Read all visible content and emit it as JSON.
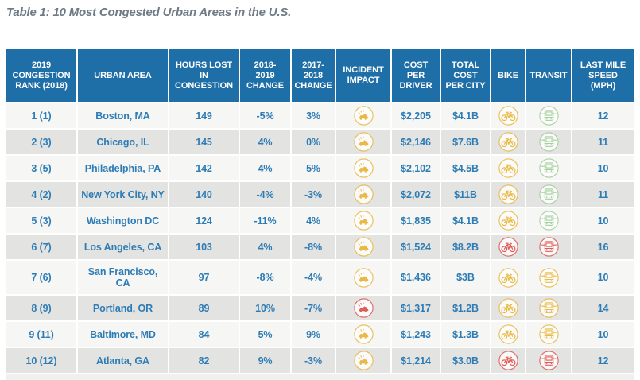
{
  "title": "Table 1: 10 Most Congested Urban Areas in the U.S.",
  "colors": {
    "header_bg": "#1e6ea8",
    "row_light": "#f6f6f4",
    "row_dark": "#e3e3e1",
    "cell_text_blue": "#2e7cb5",
    "title_gray": "#6e7a85",
    "icon_yellow": "#e9b944",
    "icon_green": "#a3cf9b",
    "icon_red": "#e05c57"
  },
  "icon_legend": {
    "incident_impact": "car-crash-icon",
    "bike": "bicycle-icon",
    "transit": "transit-vehicle-icon"
  },
  "chart_data": {
    "type": "table",
    "title": "Table 1: 10 Most Congested Urban Areas in the U.S.",
    "columns": [
      {
        "key": "rank",
        "label": "2019\nCONGESTION\nRANK (2018)",
        "type": "text"
      },
      {
        "key": "urban_area",
        "label": "URBAN AREA",
        "type": "text"
      },
      {
        "key": "hours_lost",
        "label": "HOURS LOST\nIN\nCONGESTION",
        "type": "text"
      },
      {
        "key": "change_2018_2019",
        "label": "2018-\n2019\nCHANGE",
        "type": "text"
      },
      {
        "key": "change_2017_2018",
        "label": "2017-\n2018\nCHANGE",
        "type": "text"
      },
      {
        "key": "incident_impact",
        "label": "INCIDENT\nIMPACT",
        "type": "icon",
        "icon": "incident"
      },
      {
        "key": "cost_per_driver",
        "label": "COST\nPER\nDRIVER",
        "type": "text"
      },
      {
        "key": "total_cost_per_city",
        "label": "TOTAL\nCOST\nPER CITY",
        "type": "text"
      },
      {
        "key": "bike",
        "label": "BIKE",
        "type": "icon",
        "icon": "bike"
      },
      {
        "key": "transit",
        "label": "TRANSIT",
        "type": "icon",
        "icon": "transit"
      },
      {
        "key": "last_mile_speed",
        "label": "LAST MILE\nSPEED\n(MPH)",
        "type": "text"
      }
    ],
    "rows": [
      {
        "rank": "1 (1)",
        "urban_area": "Boston, MA",
        "hours_lost": "149",
        "change_2018_2019": "-5%",
        "change_2017_2018": "3%",
        "incident_impact": "yellow",
        "cost_per_driver": "$2,205",
        "total_cost_per_city": "$4.1B",
        "bike": "yellow",
        "transit": "green",
        "last_mile_speed": "12"
      },
      {
        "rank": "2 (3)",
        "urban_area": "Chicago, IL",
        "hours_lost": "145",
        "change_2018_2019": "4%",
        "change_2017_2018": "0%",
        "incident_impact": "yellow",
        "cost_per_driver": "$2,146",
        "total_cost_per_city": "$7.6B",
        "bike": "yellow",
        "transit": "green",
        "last_mile_speed": "11"
      },
      {
        "rank": "3 (5)",
        "urban_area": "Philadelphia, PA",
        "hours_lost": "142",
        "change_2018_2019": "4%",
        "change_2017_2018": "5%",
        "incident_impact": "yellow",
        "cost_per_driver": "$2,102",
        "total_cost_per_city": "$4.5B",
        "bike": "yellow",
        "transit": "green",
        "last_mile_speed": "10"
      },
      {
        "rank": "4 (2)",
        "urban_area": "New York City, NY",
        "hours_lost": "140",
        "change_2018_2019": "-4%",
        "change_2017_2018": "-3%",
        "incident_impact": "yellow",
        "cost_per_driver": "$2,072",
        "total_cost_per_city": "$11B",
        "bike": "yellow",
        "transit": "green",
        "last_mile_speed": "11"
      },
      {
        "rank": "5 (3)",
        "urban_area": "Washington DC",
        "hours_lost": "124",
        "change_2018_2019": "-11%",
        "change_2017_2018": "4%",
        "incident_impact": "yellow",
        "cost_per_driver": "$1,835",
        "total_cost_per_city": "$4.1B",
        "bike": "yellow",
        "transit": "green",
        "last_mile_speed": "10"
      },
      {
        "rank": "6 (7)",
        "urban_area": "Los Angeles, CA",
        "hours_lost": "103",
        "change_2018_2019": "4%",
        "change_2017_2018": "-8%",
        "incident_impact": "yellow",
        "cost_per_driver": "$1,524",
        "total_cost_per_city": "$8.2B",
        "bike": "red",
        "transit": "red",
        "last_mile_speed": "16"
      },
      {
        "rank": "7 (6)",
        "urban_area": "San Francisco,\nCA",
        "hours_lost": "97",
        "change_2018_2019": "-8%",
        "change_2017_2018": "-4%",
        "incident_impact": "yellow",
        "cost_per_driver": "$1,436",
        "total_cost_per_city": "$3B",
        "bike": "yellow",
        "transit": "yellow",
        "last_mile_speed": "10",
        "tall": true
      },
      {
        "rank": "8 (9)",
        "urban_area": "Portland, OR",
        "hours_lost": "89",
        "change_2018_2019": "10%",
        "change_2017_2018": "-7%",
        "incident_impact": "red",
        "cost_per_driver": "$1,317",
        "total_cost_per_city": "$1.2B",
        "bike": "yellow",
        "transit": "yellow",
        "last_mile_speed": "14"
      },
      {
        "rank": "9 (11)",
        "urban_area": "Baltimore, MD",
        "hours_lost": "84",
        "change_2018_2019": "5%",
        "change_2017_2018": "9%",
        "incident_impact": "yellow",
        "cost_per_driver": "$1,243",
        "total_cost_per_city": "$1.3B",
        "bike": "yellow",
        "transit": "yellow",
        "last_mile_speed": "10"
      },
      {
        "rank": "10 (12)",
        "urban_area": "Atlanta, GA",
        "hours_lost": "82",
        "change_2018_2019": "9%",
        "change_2017_2018": "-3%",
        "incident_impact": "yellow",
        "cost_per_driver": "$1,214",
        "total_cost_per_city": "$3.0B",
        "bike": "red",
        "transit": "red",
        "last_mile_speed": "12"
      }
    ]
  }
}
